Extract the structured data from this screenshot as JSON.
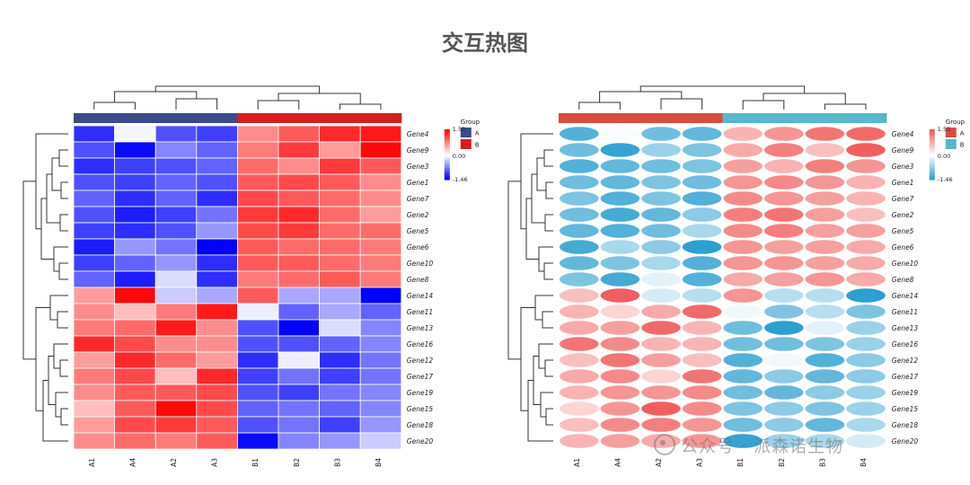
{
  "title": "交互热图",
  "watermark": "公众号 · 派森诺生物",
  "colors": {
    "heat_low": "#0000ff",
    "heat_mid": "#ffffff",
    "heat_high": "#ff0000",
    "bubble_low": "#2e9fcf",
    "bubble_mid": "#ffffff",
    "bubble_high": "#f05a5a",
    "heat_group_A": "#3a4a8a",
    "heat_group_B": "#d61e1e",
    "bubble_group_A": "#d94c40",
    "bubble_group_B": "#56b8cc",
    "tree_line": "#333333"
  },
  "chart_data": [
    {
      "type": "heatmap",
      "style": "rectangles",
      "title": "",
      "columns": [
        "A1",
        "A4",
        "A2",
        "A3",
        "B1",
        "B2",
        "B3",
        "B4"
      ],
      "column_groups": [
        "A",
        "A",
        "A",
        "A",
        "B",
        "B",
        "B",
        "B"
      ],
      "rows": [
        "Gene4",
        "Gene9",
        "Gene3",
        "Gene1",
        "Gene7",
        "Gene2",
        "Gene5",
        "Gene6",
        "Gene10",
        "Gene8",
        "Gene14",
        "Gene11",
        "Gene13",
        "Gene16",
        "Gene12",
        "Gene17",
        "Gene19",
        "Gene15",
        "Gene18",
        "Gene20"
      ],
      "values": [
        [
          -1.2,
          -0.05,
          -1.0,
          -1.1,
          0.7,
          1.0,
          1.3,
          1.4
        ],
        [
          -1.0,
          -1.4,
          -0.7,
          -0.9,
          0.8,
          1.2,
          0.6,
          1.5
        ],
        [
          -1.2,
          -1.1,
          -1.0,
          -0.9,
          0.9,
          0.7,
          1.2,
          1.0
        ],
        [
          -1.0,
          -1.1,
          -0.9,
          -1.0,
          1.0,
          1.1,
          1.0,
          0.7
        ],
        [
          -0.9,
          -1.2,
          -0.9,
          -1.2,
          1.1,
          1.0,
          0.9,
          0.7
        ],
        [
          -1.0,
          -1.3,
          -1.1,
          -0.8,
          1.2,
          1.3,
          0.9,
          0.6
        ],
        [
          -1.1,
          -1.2,
          -1.0,
          -0.6,
          1.1,
          1.2,
          0.9,
          0.9
        ],
        [
          -1.3,
          -0.6,
          -0.8,
          -1.5,
          1.0,
          0.9,
          0.9,
          0.8
        ],
        [
          -1.1,
          -0.9,
          -0.6,
          -1.2,
          1.0,
          1.0,
          0.9,
          0.8
        ],
        [
          -0.9,
          -1.3,
          -0.2,
          -1.2,
          0.8,
          0.9,
          1.0,
          0.8
        ],
        [
          0.6,
          1.5,
          -0.3,
          -0.5,
          1.0,
          -0.5,
          -0.5,
          -1.46
        ],
        [
          0.7,
          0.4,
          0.8,
          1.4,
          -0.1,
          -0.9,
          -0.5,
          -0.9
        ],
        [
          0.8,
          0.9,
          1.4,
          0.7,
          -1.0,
          -1.46,
          -0.2,
          -0.7
        ],
        [
          1.3,
          1.1,
          0.7,
          0.7,
          -1.0,
          -1.0,
          -0.9,
          -0.7
        ],
        [
          0.6,
          1.3,
          0.9,
          0.6,
          -1.2,
          -0.1,
          -1.2,
          -0.8
        ],
        [
          0.8,
          1.1,
          0.4,
          1.3,
          -1.1,
          -0.8,
          -1.1,
          -0.8
        ],
        [
          0.7,
          1.0,
          1.0,
          1.1,
          -1.0,
          -1.1,
          -0.8,
          -0.7
        ],
        [
          0.4,
          1.0,
          1.5,
          1.1,
          -0.9,
          -0.8,
          -0.9,
          -0.7
        ],
        [
          0.6,
          1.1,
          1.2,
          1.0,
          -1.0,
          -0.8,
          -1.1,
          -0.6
        ],
        [
          0.7,
          0.9,
          0.8,
          1.0,
          -1.4,
          -0.7,
          -0.6,
          -0.3
        ]
      ],
      "legend": {
        "title": "Group",
        "labels": [
          "A",
          "B"
        ],
        "scale_ticks": [
          "1.55",
          "0.00",
          "-1.46"
        ],
        "scale_min": -1.46,
        "scale_max": 1.55
      }
    },
    {
      "type": "heatmap",
      "style": "ellipses",
      "title": "",
      "columns": [
        "A1",
        "A4",
        "A2",
        "A3",
        "B1",
        "B2",
        "B3",
        "B4"
      ],
      "column_groups": [
        "A",
        "A",
        "A",
        "A",
        "B",
        "B",
        "B",
        "B"
      ],
      "rows": [
        "Gene4",
        "Gene9",
        "Gene3",
        "Gene1",
        "Gene7",
        "Gene2",
        "Gene5",
        "Gene6",
        "Gene10",
        "Gene8",
        "Gene14",
        "Gene11",
        "Gene13",
        "Gene16",
        "Gene12",
        "Gene17",
        "Gene19",
        "Gene15",
        "Gene18",
        "Gene20"
      ],
      "values": [
        [
          -1.2,
          -0.05,
          -1.0,
          -1.1,
          0.7,
          1.0,
          1.3,
          1.4
        ],
        [
          -1.0,
          -1.4,
          -0.7,
          -0.9,
          0.8,
          1.2,
          0.6,
          1.5
        ],
        [
          -1.2,
          -1.1,
          -1.0,
          -0.9,
          0.9,
          0.7,
          1.2,
          1.0
        ],
        [
          -1.0,
          -1.1,
          -0.9,
          -1.0,
          1.0,
          1.1,
          1.0,
          0.7
        ],
        [
          -0.9,
          -1.2,
          -0.9,
          -1.2,
          1.1,
          1.0,
          0.9,
          0.7
        ],
        [
          -1.0,
          -1.3,
          -1.1,
          -0.8,
          1.2,
          1.3,
          0.9,
          0.6
        ],
        [
          -1.1,
          -1.2,
          -1.0,
          -0.6,
          1.1,
          1.2,
          0.9,
          0.9
        ],
        [
          -1.3,
          -0.6,
          -0.8,
          -1.5,
          1.0,
          0.9,
          0.9,
          0.8
        ],
        [
          -1.1,
          -0.9,
          -0.6,
          -1.2,
          1.0,
          1.0,
          0.9,
          0.8
        ],
        [
          -0.9,
          -1.3,
          -0.2,
          -1.2,
          0.8,
          0.9,
          1.0,
          0.8
        ],
        [
          0.6,
          1.5,
          -0.3,
          -0.5,
          1.0,
          -0.5,
          -0.5,
          -1.46
        ],
        [
          0.7,
          0.4,
          0.8,
          1.4,
          -0.1,
          -0.9,
          -0.5,
          -0.9
        ],
        [
          0.8,
          0.9,
          1.4,
          0.7,
          -1.0,
          -1.46,
          -0.2,
          -0.7
        ],
        [
          1.3,
          1.1,
          0.7,
          0.7,
          -1.0,
          -1.0,
          -0.9,
          -0.7
        ],
        [
          0.6,
          1.3,
          0.9,
          0.6,
          -1.2,
          -0.1,
          -1.2,
          -0.8
        ],
        [
          0.8,
          1.1,
          0.4,
          1.3,
          -1.1,
          -0.8,
          -1.1,
          -0.8
        ],
        [
          0.7,
          1.0,
          1.0,
          1.1,
          -1.0,
          -1.1,
          -0.8,
          -0.7
        ],
        [
          0.4,
          1.0,
          1.5,
          1.1,
          -0.9,
          -0.8,
          -0.9,
          -0.7
        ],
        [
          0.6,
          1.1,
          1.2,
          1.0,
          -1.0,
          -0.8,
          -1.1,
          -0.6
        ],
        [
          0.7,
          0.9,
          0.8,
          1.0,
          -1.4,
          -0.7,
          -0.6,
          -0.3
        ]
      ],
      "legend": {
        "title": "Group",
        "labels": [
          "A",
          "B"
        ],
        "scale_ticks": [
          "1.55",
          "0.00",
          "-1.46"
        ],
        "scale_min": -1.46,
        "scale_max": 1.55
      }
    }
  ]
}
